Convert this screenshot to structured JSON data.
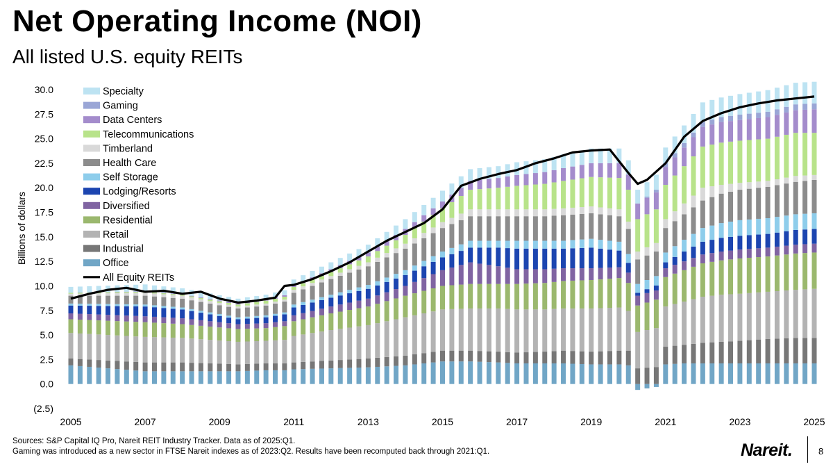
{
  "header": {
    "title": "Net Operating Income (NOI)",
    "subtitle": "All listed U.S. equity REITs"
  },
  "footer": {
    "sources": "Sources: S&P Capital IQ Pro, Nareit REIT Industry Tracker. Data as of 2025:Q1.",
    "note": "Gaming was introduced as a new sector in FTSE Nareit indexes as of 2023:Q2. Results have been recomputed back through 2021:Q1.",
    "logo": "Nareit.",
    "page_number": "8"
  },
  "colors": {
    "Office": "#71a6c6",
    "Industrial": "#777777",
    "Retail": "#b3b3b3",
    "Residential": "#9bb86e",
    "Diversified": "#8064a2",
    "Lodging/Resorts": "#1c45b0",
    "Self Storage": "#8ecdeb",
    "Health Care": "#8c8c8c",
    "Timberland": "#d9d9d9",
    "Telecommunications": "#b8e38a",
    "Data Centers": "#a48ccc",
    "Gaming": "#9aa6d6",
    "Specialty": "#bde3f2",
    "All Equity REITs": "#000000"
  },
  "chart_data": {
    "type": "bar",
    "stacked": true,
    "title": "Net Operating Income (NOI)",
    "subtitle": "All listed U.S. equity REITs",
    "ylabel": "Billions of dollars",
    "ylim": [
      -2.5,
      30.0
    ],
    "yticks": [
      "(2.5)",
      "0.0",
      "2.5",
      "5.0",
      "7.5",
      "10.0",
      "12.5",
      "15.0",
      "17.5",
      "20.0",
      "22.5",
      "25.0",
      "27.5",
      "30.0"
    ],
    "xticks": [
      "2005",
      "2007",
      "2009",
      "2011",
      "2013",
      "2015",
      "2017",
      "2019",
      "2021",
      "2023",
      "2025"
    ],
    "x_range": [
      2005,
      2025
    ],
    "grid": false,
    "legend_position": "top-left",
    "legend": [
      "Specialty",
      "Gaming",
      "Data Centers",
      "Telecommunications",
      "Timberland",
      "Health Care",
      "Self Storage",
      "Lodging/Resorts",
      "Diversified",
      "Residential",
      "Retail",
      "Industrial",
      "Office",
      "All Equity REITs"
    ],
    "stack_order": [
      "Office",
      "Industrial",
      "Retail",
      "Residential",
      "Diversified",
      "Lodging/Resorts",
      "Self Storage",
      "Health Care",
      "Timberland",
      "Telecommunications",
      "Data Centers",
      "Gaming",
      "Specialty"
    ],
    "anchors": {
      "x": [
        2005.0,
        2007.0,
        2008.0,
        2009.5,
        2010.25,
        2010.75,
        2011.0,
        2012.0,
        2013.0,
        2014.0,
        2015.0,
        2015.75,
        2016.5,
        2017.0,
        2017.75,
        2018.25,
        2019.0,
        2019.75,
        2020.25,
        2021.0,
        2021.5,
        2022.0,
        2022.5,
        2023.0,
        2023.75,
        2024.5,
        2025.0
      ],
      "Office": [
        1.9,
        1.3,
        1.3,
        1.3,
        1.4,
        1.4,
        1.5,
        1.6,
        1.7,
        1.9,
        2.3,
        2.3,
        2.2,
        2.1,
        2.1,
        2.1,
        2.0,
        2.0,
        1.8,
        2.0,
        2.1,
        2.1,
        2.1,
        2.1,
        2.1,
        2.1,
        2.1
      ],
      "Industrial": [
        0.7,
        0.9,
        0.9,
        0.7,
        0.7,
        0.7,
        0.7,
        0.8,
        0.9,
        1.0,
        1.1,
        1.1,
        1.1,
        1.1,
        1.2,
        1.3,
        1.3,
        1.4,
        1.6,
        1.8,
        1.9,
        2.1,
        2.2,
        2.3,
        2.5,
        2.6,
        2.6
      ],
      "Retail": [
        2.6,
        2.6,
        2.5,
        2.3,
        2.3,
        2.4,
        2.7,
        3.1,
        3.4,
        3.9,
        4.2,
        4.3,
        4.4,
        4.4,
        4.3,
        4.3,
        4.4,
        4.4,
        3.7,
        4.1,
        4.4,
        4.7,
        4.8,
        4.8,
        4.8,
        4.9,
        5.0
      ],
      "Residential": [
        1.4,
        1.5,
        1.4,
        1.3,
        1.3,
        1.4,
        1.5,
        1.7,
        1.9,
        2.2,
        2.4,
        2.5,
        2.5,
        2.6,
        2.7,
        2.8,
        2.9,
        3.0,
        2.7,
        3.0,
        3.2,
        3.4,
        3.5,
        3.6,
        3.6,
        3.7,
        3.7
      ],
      "Diversified": [
        0.6,
        0.6,
        0.6,
        0.5,
        0.5,
        0.5,
        0.6,
        0.7,
        0.8,
        1.0,
        1.6,
        2.2,
        1.8,
        1.5,
        1.4,
        1.3,
        1.2,
        1.1,
        1.0,
        0.9,
        0.9,
        0.9,
        0.9,
        0.9,
        0.9,
        0.9,
        0.9
      ],
      "Lodging/Resorts": [
        0.8,
        1.0,
        0.9,
        0.5,
        0.6,
        0.7,
        0.8,
        0.9,
        1.0,
        1.1,
        1.3,
        1.5,
        1.9,
        2.1,
        2.1,
        2.0,
        2.1,
        1.7,
        0.3,
        0.6,
        1.0,
        1.3,
        1.4,
        1.4,
        1.4,
        1.5,
        1.5
      ],
      "Self Storage": [
        0.2,
        0.2,
        0.2,
        0.2,
        0.2,
        0.2,
        0.3,
        0.3,
        0.4,
        0.5,
        0.6,
        0.7,
        0.7,
        0.8,
        0.8,
        0.8,
        0.9,
        0.9,
        0.9,
        1.0,
        1.2,
        1.4,
        1.5,
        1.6,
        1.6,
        1.6,
        1.6
      ],
      "Health Care": [
        0.8,
        0.9,
        0.9,
        0.9,
        1.0,
        1.1,
        1.2,
        1.6,
        1.9,
        2.2,
        2.4,
        2.5,
        2.5,
        2.5,
        2.5,
        2.6,
        2.6,
        2.6,
        2.5,
        2.5,
        2.6,
        2.8,
        3.0,
        3.1,
        3.2,
        3.3,
        3.4
      ],
      "Timberland": [
        0.2,
        0.3,
        0.3,
        0.2,
        0.2,
        0.2,
        0.3,
        0.3,
        0.4,
        0.5,
        0.6,
        0.7,
        0.7,
        0.7,
        0.7,
        0.7,
        0.7,
        0.7,
        0.8,
        0.9,
        1.1,
        1.3,
        0.9,
        0.7,
        0.6,
        0.6,
        0.5
      ],
      "Telecommunications": [
        0.1,
        0.1,
        0.1,
        0.2,
        0.3,
        0.3,
        0.3,
        0.4,
        0.6,
        0.9,
        1.4,
        2.0,
        2.2,
        2.4,
        2.6,
        2.8,
        3.0,
        3.2,
        3.3,
        3.5,
        3.8,
        4.2,
        4.3,
        4.3,
        4.3,
        4.4,
        4.3
      ],
      "Data Centers": [
        0.0,
        0.05,
        0.05,
        0.1,
        0.1,
        0.15,
        0.15,
        0.3,
        0.4,
        0.6,
        0.7,
        0.9,
        1.0,
        1.1,
        1.2,
        1.3,
        1.4,
        1.5,
        1.6,
        1.8,
        1.9,
        2.0,
        2.1,
        2.1,
        2.2,
        2.3,
        2.4
      ],
      "Gaming": [
        0,
        0,
        0,
        0,
        0,
        0,
        0,
        0,
        0,
        0,
        0,
        0,
        0,
        0,
        0,
        0,
        0,
        0,
        0,
        0.4,
        0.45,
        0.5,
        0.5,
        0.55,
        0.55,
        0.6,
        0.6
      ],
      "Specialty": [
        0.6,
        0.7,
        0.6,
        0.5,
        0.5,
        0.5,
        0.6,
        0.7,
        0.8,
        1.0,
        1.1,
        1.2,
        1.2,
        1.3,
        1.3,
        1.4,
        1.5,
        1.5,
        1.4,
        1.6,
        1.8,
        2.0,
        2.0,
        2.1,
        2.2,
        2.2,
        2.2
      ]
    },
    "total_series": {
      "name": "All Equity REITs",
      "x": [
        2005.0,
        2005.5,
        2006.0,
        2006.5,
        2007.0,
        2007.5,
        2008.0,
        2008.5,
        2009.0,
        2009.5,
        2010.0,
        2010.5,
        2010.75,
        2011.0,
        2011.5,
        2012.0,
        2012.5,
        2013.0,
        2013.5,
        2014.0,
        2014.5,
        2015.0,
        2015.5,
        2016.0,
        2016.5,
        2017.0,
        2017.5,
        2018.0,
        2018.5,
        2019.0,
        2019.5,
        2020.0,
        2020.25,
        2020.5,
        2021.0,
        2021.5,
        2022.0,
        2022.5,
        2023.0,
        2023.5,
        2024.0,
        2024.5,
        2025.0
      ],
      "values": [
        8.7,
        9.2,
        9.6,
        9.8,
        9.4,
        9.5,
        9.2,
        9.4,
        8.7,
        8.3,
        8.5,
        8.8,
        10.0,
        10.1,
        10.7,
        11.5,
        12.4,
        13.5,
        14.6,
        15.5,
        16.4,
        17.8,
        20.2,
        20.9,
        21.4,
        21.8,
        22.5,
        23.0,
        23.6,
        23.8,
        23.9,
        21.5,
        20.4,
        20.8,
        22.5,
        25.2,
        26.8,
        27.6,
        28.2,
        28.6,
        28.9,
        29.1,
        29.3
      ]
    },
    "quarters": {
      "start": 2005.0,
      "end": 2025.0,
      "step": 0.25
    }
  }
}
